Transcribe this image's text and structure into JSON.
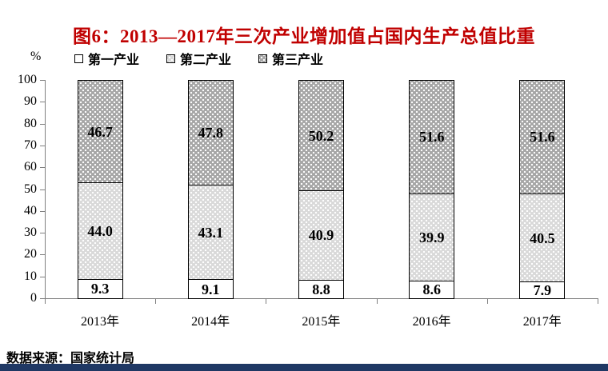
{
  "page": {
    "title": "图6：2013—2017年三次产业增加值占国内生产总值比重",
    "unit_label": "%",
    "source_note": "数据来源：国家统计局",
    "colors": {
      "title_red": "#c00000",
      "footer_navy": "#1f3864",
      "axis_gray": "#808080",
      "bar_border": "#000000",
      "series1_fill": "#ffffff",
      "series2_fill": "#d9d9d9",
      "series3_fill": "#a6a6a6",
      "pattern_dot": "#ffffff",
      "text": "#000000"
    }
  },
  "chart_data": {
    "type": "bar",
    "stacked": true,
    "title": "图6：2013—2017年三次产业增加值占国内生产总值比重",
    "xlabel": "",
    "ylabel": "%",
    "categories": [
      "2013年",
      "2014年",
      "2015年",
      "2016年",
      "2017年"
    ],
    "series": [
      {
        "name": "第一产业",
        "values": [
          9.3,
          9.1,
          8.8,
          8.6,
          7.9
        ]
      },
      {
        "name": "第二产业",
        "values": [
          44.0,
          43.1,
          40.9,
          39.9,
          40.5
        ]
      },
      {
        "name": "第三产业",
        "values": [
          46.7,
          47.8,
          50.2,
          51.6,
          51.6
        ]
      }
    ],
    "ylim": [
      0,
      100
    ],
    "yticks": [
      0,
      10,
      20,
      30,
      40,
      50,
      60,
      70,
      80,
      90,
      100
    ],
    "legend_position": "top",
    "grid": false,
    "value_labels": true,
    "source": "数据来源：国家统计局"
  }
}
